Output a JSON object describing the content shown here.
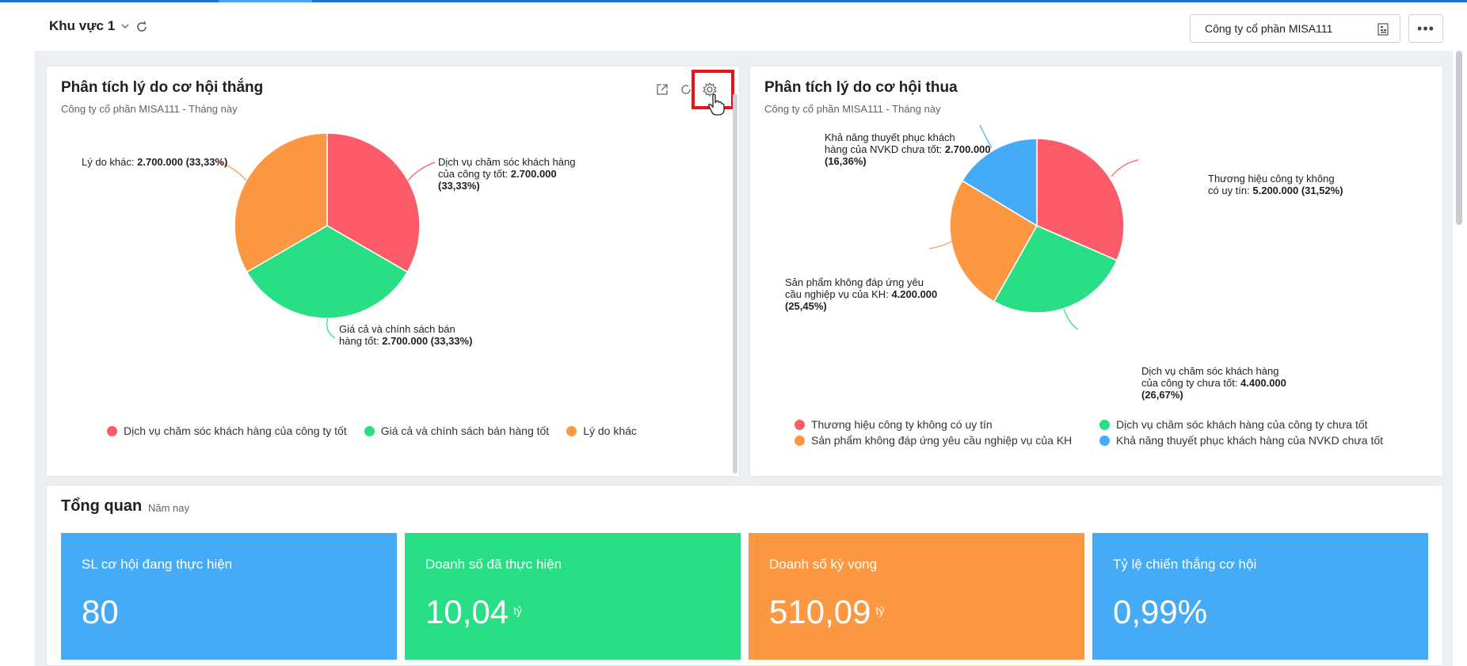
{
  "header": {
    "area_label": "Khu vực 1",
    "company": "Công ty cổ phần MISA111",
    "more_label": "•••"
  },
  "colors": {
    "red": "#fc5b69",
    "green": "#29df85",
    "orange": "#fd9842",
    "blue": "#46abf7",
    "accent": "#1e6fd9"
  },
  "win_card": {
    "title": "Phân tích lý do cơ hội thắng",
    "subtitle": "Công ty cổ phần MISA111 - Tháng này",
    "labels": [
      {
        "name_l1": "Dịch vụ chăm sóc khách hàng",
        "name_l2": "của công ty tốt:",
        "value": "2.700.000",
        "pct": "(33,33%)"
      },
      {
        "name_l1": "Giá cả và chính sách bán",
        "name_l2": "hàng tốt:",
        "value": "2.700.000 (33,33%)"
      },
      {
        "name": "Lý do khác:",
        "value": "2.700.000 (33,33%)"
      }
    ],
    "legend": [
      "Dịch vụ chăm sóc khách hàng của công ty tốt",
      "Giá cả và chính sách bán hàng tốt",
      "Lý do khác"
    ]
  },
  "lose_card": {
    "title": "Phân tích lý do cơ hội thua",
    "subtitle": "Công ty cổ phần MISA111 - Tháng này",
    "labels": [
      {
        "name_l1": "Thương hiệu công ty không",
        "name_l2": "có uy tín:",
        "value": "5.200.000 (31,52%)"
      },
      {
        "name_l1": "Dịch vụ chăm sóc khách hàng",
        "name_l2": "của công ty chưa tốt:",
        "value": "4.400.000",
        "pct": "(26,67%)"
      },
      {
        "name_l1": "Sản phẩm không đáp ứng yêu",
        "name_l2": "cầu nghiệp vụ của KH:",
        "value": "4.200.000",
        "pct": "(25,45%)"
      },
      {
        "name_l1": "Khả năng thuyết phục khách",
        "name_l2": "hàng của NVKD chưa tốt:",
        "value": "2.700.000",
        "pct": "(16,36%)"
      }
    ],
    "legend": [
      "Thương hiệu công ty không có uy tín",
      "Dịch vụ chăm sóc khách hàng của công ty chưa tốt",
      "Sản phẩm không đáp ứng yêu cầu nghiệp vụ của KH",
      "Khả năng thuyết phục khách hàng của NVKD chưa tốt"
    ]
  },
  "chart_data": [
    {
      "type": "pie",
      "title": "Phân tích lý do cơ hội thắng",
      "categories": [
        "Dịch vụ chăm sóc khách hàng của công ty tốt",
        "Giá cả và chính sách bán hàng tốt",
        "Lý do khác"
      ],
      "values": [
        2700000,
        2700000,
        2700000
      ],
      "percentages": [
        33.33,
        33.33,
        33.33
      ],
      "colors": [
        "#fc5b69",
        "#29df85",
        "#fd9842"
      ]
    },
    {
      "type": "pie",
      "title": "Phân tích lý do cơ hội thua",
      "categories": [
        "Thương hiệu công ty không có uy tín",
        "Dịch vụ chăm sóc khách hàng của công ty chưa tốt",
        "Sản phẩm không đáp ứng yêu cầu nghiệp vụ của KH",
        "Khả năng thuyết phục khách hàng của NVKD chưa tốt"
      ],
      "values": [
        5200000,
        4400000,
        4200000,
        2700000
      ],
      "percentages": [
        31.52,
        26.67,
        25.45,
        16.36
      ],
      "colors": [
        "#fc5b69",
        "#29df85",
        "#fd9842",
        "#46abf7"
      ]
    }
  ],
  "overview": {
    "title": "Tổng quan",
    "period": "Năm nay",
    "kpis": [
      {
        "label": "SL cơ hội đang thực hiện",
        "value": "80",
        "unit": "",
        "color": "#46abf7"
      },
      {
        "label": "Doanh số đã thực hiện",
        "value": "10,04",
        "unit": "tỷ",
        "color": "#29df85"
      },
      {
        "label": "Doanh số kỳ vọng",
        "value": "510,09",
        "unit": "tỷ",
        "color": "#fd9842"
      },
      {
        "label": "Tỷ lệ chiến thắng cơ hội",
        "value": "0,99%",
        "unit": "",
        "color": "#46abf7"
      }
    ]
  }
}
